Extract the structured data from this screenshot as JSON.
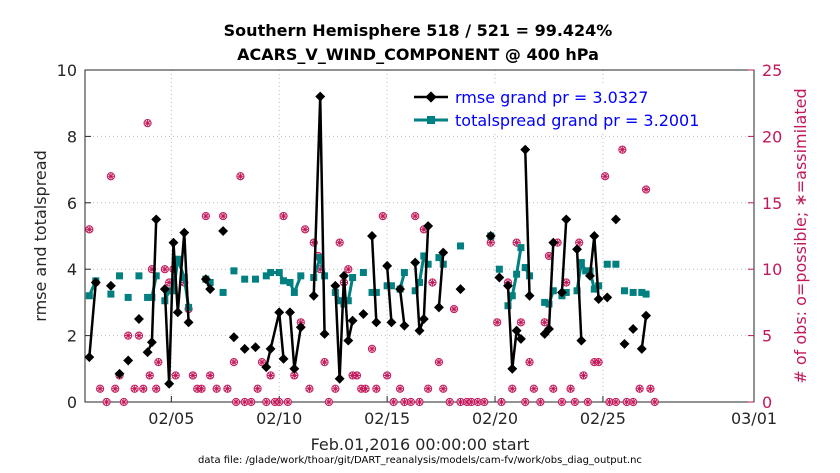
{
  "title_line1": "Southern Hemisphere 518 / 521 = 99.424%",
  "title_line2": "ACARS_V_WIND_COMPONENT @ 400 hPa",
  "xlabel": "Feb.01,2016 00:00:00 start",
  "footer": "data file: /glade/work/thoar/git/DART_reanalysis/models/cam-fv/work/obs_diag_output.nc",
  "colors": {
    "rmse": "#000000",
    "spread": "#008080",
    "obs": "#c2185b",
    "legend_text": "#0000ff"
  },
  "chart_data": {
    "type": "line",
    "title": "Southern Hemisphere 518 / 521 = 99.424% ACARS_V_WIND_COMPONENT @ 400 hPa",
    "xlabel": "Feb.01,2016 00:00:00 start",
    "ylabel": "rmse and totalspread",
    "y2label": "# of obs: o=possible; ∗=assimilated",
    "xlim": [
      1,
      32
    ],
    "ylim": [
      0,
      10
    ],
    "y2lim": [
      0,
      25
    ],
    "xticks": [
      5,
      10,
      15,
      20,
      25,
      32
    ],
    "xtick_labels": [
      "02/05",
      "02/10",
      "02/15",
      "02/20",
      "02/25",
      "03/01"
    ],
    "yticks": [
      0,
      2,
      4,
      6,
      8,
      10
    ],
    "y2ticks": [
      0,
      5,
      10,
      15,
      20,
      25
    ],
    "legend_position": "top-right",
    "series": [
      {
        "name": "rmse grand pr = 3.0327",
        "segments": [
          [
            [
              1.2,
              1.35
            ],
            [
              1.5,
              3.6
            ]
          ],
          [
            [
              2.2,
              3.5
            ]
          ],
          [
            [
              2.6,
              0.85
            ]
          ],
          [
            [
              3.0,
              1.25
            ]
          ],
          [
            [
              3.5,
              2.5
            ]
          ],
          [
            [
              3.9,
              1.5
            ],
            [
              4.1,
              1.8
            ],
            [
              4.3,
              5.5
            ]
          ],
          [
            [
              4.7,
              3.4
            ],
            [
              4.9,
              0.55
            ],
            [
              5.1,
              4.8
            ],
            [
              5.3,
              2.7
            ],
            [
              5.6,
              5.1
            ],
            [
              5.8,
              2.4
            ]
          ],
          [
            [
              6.6,
              3.7
            ],
            [
              6.8,
              3.4
            ]
          ],
          [
            [
              7.4,
              5.15
            ]
          ],
          [
            [
              7.9,
              1.95
            ]
          ],
          [
            [
              8.4,
              1.6
            ]
          ],
          [
            [
              8.9,
              1.65
            ]
          ],
          [
            [
              9.4,
              1.05
            ],
            [
              9.6,
              1.6
            ],
            [
              10.0,
              2.7
            ],
            [
              10.2,
              1.3
            ]
          ],
          [
            [
              10.5,
              2.7
            ],
            [
              10.7,
              1.0
            ],
            [
              11.0,
              2.25
            ]
          ],
          [
            [
              11.6,
              3.2
            ],
            [
              11.9,
              9.2
            ],
            [
              12.1,
              2.05
            ]
          ],
          [
            [
              12.6,
              3.5
            ],
            [
              12.8,
              0.7
            ],
            [
              13.0,
              3.8
            ],
            [
              13.2,
              1.85
            ],
            [
              13.4,
              2.45
            ]
          ],
          [
            [
              13.9,
              2.65
            ]
          ],
          [
            [
              14.3,
              5.0
            ],
            [
              14.5,
              2.4
            ]
          ],
          [
            [
              15.0,
              4.1
            ],
            [
              15.2,
              2.4
            ]
          ],
          [
            [
              15.6,
              3.4
            ],
            [
              15.8,
              2.3
            ]
          ],
          [
            [
              16.3,
              4.2
            ],
            [
              16.5,
              2.15
            ],
            [
              16.7,
              2.5
            ],
            [
              16.9,
              5.3
            ]
          ],
          [
            [
              17.4,
              2.85
            ],
            [
              17.6,
              4.5
            ]
          ],
          [
            [
              18.4,
              3.4
            ]
          ],
          [
            [
              19.8,
              5.0
            ]
          ],
          [
            [
              20.2,
              3.75
            ]
          ],
          [
            [
              20.6,
              3.5
            ],
            [
              20.8,
              1.0
            ],
            [
              21.0,
              2.15
            ],
            [
              21.2,
              1.9
            ]
          ],
          [
            [
              21.4,
              7.6
            ],
            [
              21.6,
              3.2
            ]
          ],
          [
            [
              22.3,
              2.05
            ],
            [
              22.5,
              2.2
            ],
            [
              22.7,
              4.8
            ]
          ],
          [
            [
              23.1,
              3.3
            ],
            [
              23.3,
              5.5
            ]
          ],
          [
            [
              23.8,
              4.6
            ],
            [
              24.0,
              1.85
            ]
          ],
          [
            [
              24.4,
              3.8
            ],
            [
              24.6,
              5.0
            ],
            [
              24.8,
              3.1
            ]
          ],
          [
            [
              25.2,
              3.15
            ]
          ],
          [
            [
              25.6,
              5.5
            ]
          ],
          [
            [
              26.0,
              1.75
            ]
          ],
          [
            [
              26.4,
              2.2
            ]
          ],
          [
            [
              26.8,
              1.6
            ],
            [
              27.0,
              2.6
            ]
          ]
        ]
      },
      {
        "name": "totalspread grand pr = 3.2001",
        "segments": [
          [
            [
              1.2,
              3.2
            ],
            [
              1.5,
              3.65
            ]
          ],
          [
            [
              2.2,
              3.25
            ]
          ],
          [
            [
              2.6,
              3.8
            ]
          ],
          [
            [
              3.0,
              3.15
            ]
          ],
          [
            [
              3.5,
              3.8
            ]
          ],
          [
            [
              3.9,
              3.15
            ],
            [
              4.1,
              3.15
            ],
            [
              4.3,
              3.8
            ]
          ],
          [
            [
              4.7,
              3.05
            ],
            [
              4.9,
              3.35
            ],
            [
              5.1,
              3.35
            ],
            [
              5.3,
              4.3
            ],
            [
              5.6,
              3.75
            ],
            [
              5.8,
              2.85
            ]
          ],
          [
            [
              6.6,
              3.7
            ],
            [
              6.8,
              3.6
            ]
          ],
          [
            [
              7.4,
              3.3
            ]
          ],
          [
            [
              7.9,
              3.95
            ]
          ],
          [
            [
              8.4,
              3.7
            ]
          ],
          [
            [
              8.9,
              3.7
            ]
          ],
          [
            [
              9.4,
              3.8
            ],
            [
              9.6,
              3.9
            ],
            [
              10.0,
              3.9
            ],
            [
              10.2,
              3.65
            ]
          ],
          [
            [
              10.5,
              3.6
            ],
            [
              10.7,
              3.3
            ],
            [
              11.0,
              3.8
            ]
          ],
          [
            [
              11.6,
              3.75
            ],
            [
              11.9,
              4.35
            ],
            [
              12.1,
              3.8
            ]
          ],
          [
            [
              12.6,
              3.3
            ],
            [
              12.8,
              3.05
            ],
            [
              13.0,
              2.95
            ],
            [
              13.2,
              3.05
            ],
            [
              13.4,
              3.75
            ]
          ],
          [
            [
              13.9,
              3.9
            ]
          ],
          [
            [
              14.3,
              3.3
            ],
            [
              14.5,
              3.3
            ]
          ],
          [
            [
              15.0,
              3.5
            ],
            [
              15.2,
              3.5
            ]
          ],
          [
            [
              15.6,
              3.4
            ],
            [
              15.8,
              3.9
            ]
          ],
          [
            [
              16.3,
              3.35
            ],
            [
              16.5,
              3.6
            ],
            [
              16.7,
              4.4
            ],
            [
              16.9,
              4.15
            ]
          ],
          [
            [
              17.4,
              4.35
            ],
            [
              17.6,
              4.15
            ]
          ],
          [
            [
              18.4,
              4.7
            ]
          ],
          [
            [
              19.8,
              5.0
            ]
          ],
          [
            [
              20.2,
              4.0
            ]
          ],
          [
            [
              20.6,
              2.9
            ],
            [
              20.8,
              3.2
            ],
            [
              21.0,
              3.85
            ],
            [
              21.2,
              4.65
            ]
          ],
          [
            [
              21.4,
              4.05
            ],
            [
              21.6,
              3.8
            ]
          ],
          [
            [
              22.3,
              3.0
            ],
            [
              22.5,
              2.95
            ],
            [
              22.7,
              3.35
            ]
          ],
          [
            [
              23.1,
              3.2
            ],
            [
              23.3,
              3.3
            ]
          ],
          [
            [
              23.8,
              3.35
            ],
            [
              24.0,
              4.2
            ],
            [
              24.2,
              3.95
            ]
          ],
          [
            [
              24.4,
              3.95
            ],
            [
              24.6,
              3.4
            ],
            [
              24.8,
              3.5
            ]
          ],
          [
            [
              25.2,
              4.15
            ]
          ],
          [
            [
              25.6,
              4.15
            ]
          ],
          [
            [
              26.0,
              3.35
            ]
          ],
          [
            [
              26.4,
              3.3
            ]
          ],
          [
            [
              26.8,
              3.3
            ],
            [
              27.0,
              3.25
            ]
          ]
        ]
      },
      {
        "name": "obs",
        "points": [
          [
            1.2,
            13
          ],
          [
            1.5,
            9
          ],
          [
            1.7,
            1
          ],
          [
            2.0,
            0
          ],
          [
            2.2,
            17
          ],
          [
            2.4,
            1
          ],
          [
            2.6,
            2
          ],
          [
            2.8,
            0
          ],
          [
            3.0,
            5
          ],
          [
            3.3,
            1
          ],
          [
            3.5,
            5
          ],
          [
            3.7,
            1
          ],
          [
            3.9,
            21
          ],
          [
            4.0,
            2
          ],
          [
            4.1,
            10
          ],
          [
            4.3,
            1
          ],
          [
            4.4,
            3
          ],
          [
            4.7,
            10
          ],
          [
            4.9,
            9
          ],
          [
            5.1,
            10
          ],
          [
            5.2,
            2
          ],
          [
            5.6,
            9
          ],
          [
            5.8,
            7
          ],
          [
            6.0,
            2
          ],
          [
            6.2,
            1
          ],
          [
            6.4,
            1
          ],
          [
            6.6,
            14
          ],
          [
            6.8,
            2
          ],
          [
            7.1,
            1
          ],
          [
            7.4,
            14
          ],
          [
            7.6,
            1
          ],
          [
            7.9,
            3
          ],
          [
            8.0,
            0
          ],
          [
            8.2,
            17
          ],
          [
            8.4,
            0
          ],
          [
            8.7,
            0
          ],
          [
            9.0,
            1
          ],
          [
            9.2,
            3
          ],
          [
            9.4,
            0
          ],
          [
            9.6,
            2
          ],
          [
            9.8,
            0
          ],
          [
            10.0,
            0
          ],
          [
            10.2,
            14
          ],
          [
            10.4,
            0
          ],
          [
            10.7,
            2
          ],
          [
            11.0,
            6
          ],
          [
            11.2,
            13
          ],
          [
            11.4,
            1
          ],
          [
            11.6,
            12
          ],
          [
            11.8,
            11
          ],
          [
            11.9,
            10
          ],
          [
            12.1,
            3
          ],
          [
            12.3,
            0
          ],
          [
            12.6,
            1
          ],
          [
            12.8,
            12
          ],
          [
            13.0,
            9
          ],
          [
            13.2,
            10
          ],
          [
            13.4,
            2
          ],
          [
            13.6,
            2
          ],
          [
            13.8,
            1
          ],
          [
            14.0,
            1
          ],
          [
            14.3,
            4
          ],
          [
            14.5,
            1
          ],
          [
            14.8,
            14
          ],
          [
            15.0,
            2
          ],
          [
            15.3,
            0
          ],
          [
            15.6,
            1
          ],
          [
            15.8,
            0
          ],
          [
            16.1,
            0
          ],
          [
            16.3,
            14
          ],
          [
            16.5,
            0
          ],
          [
            16.7,
            13
          ],
          [
            16.9,
            1
          ],
          [
            17.1,
            9
          ],
          [
            17.4,
            3
          ],
          [
            17.6,
            1
          ],
          [
            17.9,
            0
          ],
          [
            18.1,
            7
          ],
          [
            18.4,
            0
          ],
          [
            18.7,
            0
          ],
          [
            18.9,
            0
          ],
          [
            19.2,
            0
          ],
          [
            19.5,
            0
          ],
          [
            19.8,
            12
          ],
          [
            20.1,
            6
          ],
          [
            20.3,
            0
          ],
          [
            20.6,
            9
          ],
          [
            20.8,
            1
          ],
          [
            21.0,
            12
          ],
          [
            21.2,
            6
          ],
          [
            21.4,
            0
          ],
          [
            21.6,
            3
          ],
          [
            21.8,
            1
          ],
          [
            22.1,
            0
          ],
          [
            22.3,
            6
          ],
          [
            22.5,
            11
          ],
          [
            22.7,
            1
          ],
          [
            22.9,
            12
          ],
          [
            23.1,
            0
          ],
          [
            23.3,
            9
          ],
          [
            23.5,
            1
          ],
          [
            23.7,
            0
          ],
          [
            23.9,
            12
          ],
          [
            24.1,
            2
          ],
          [
            24.3,
            0
          ],
          [
            24.6,
            3
          ],
          [
            24.8,
            3
          ],
          [
            25.1,
            17
          ],
          [
            25.3,
            0
          ],
          [
            25.6,
            0
          ],
          [
            25.9,
            19
          ],
          [
            26.1,
            0
          ],
          [
            26.4,
            0
          ],
          [
            26.7,
            1
          ],
          [
            27.0,
            16
          ],
          [
            27.2,
            1
          ],
          [
            27.4,
            0
          ]
        ]
      }
    ]
  }
}
